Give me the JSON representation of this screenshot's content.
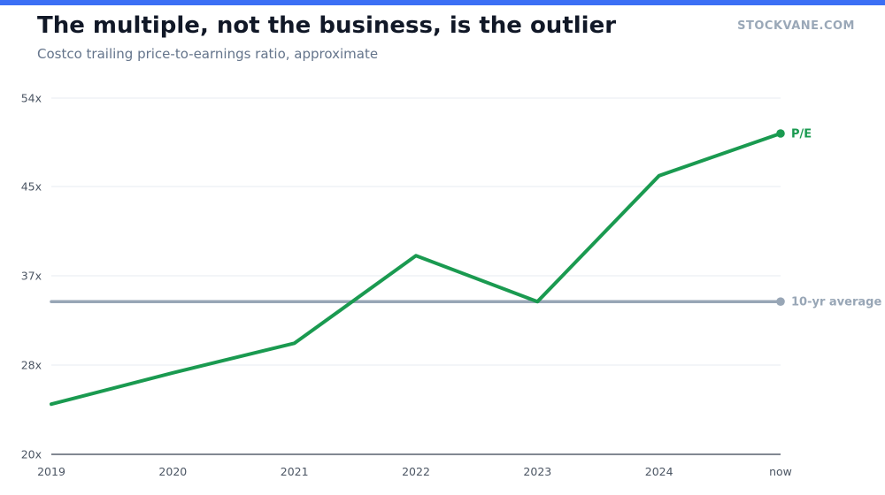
{
  "header": {
    "title": "The multiple, not the business, is the outlier",
    "subtitle": "Costco trailing price-to-earnings ratio, approximate",
    "brand": "STOCKVANE.COM"
  },
  "colors": {
    "accent_bar": "#3b6ff5",
    "pe_line": "#1a9a50",
    "average_line": "#98a6b6",
    "grid": "#eceff3",
    "axis": "#374151"
  },
  "chart_data": {
    "type": "line",
    "title": "The multiple, not the business, is the outlier",
    "subtitle": "Costco trailing price-to-earnings ratio, approximate",
    "xlabel": "",
    "ylabel": "",
    "categories": [
      "2019",
      "2020",
      "2021",
      "2022",
      "2023",
      "2024",
      "now"
    ],
    "ylim": [
      20,
      56
    ],
    "yticks": [
      20,
      28,
      37,
      45,
      54
    ],
    "ytick_labels": [
      "20x",
      "28x",
      "37x",
      "45x",
      "54x"
    ],
    "grid": true,
    "series": [
      {
        "name": "P/E",
        "values": [
          24.5,
          27.3,
          30.2,
          38.8,
          34.4,
          46.1,
          50.4
        ]
      },
      {
        "name": "10-yr average",
        "values": [
          34.4,
          34.4,
          34.4,
          34.4,
          34.4,
          34.4,
          34.4
        ]
      }
    ],
    "legend": "direct-labels-right"
  }
}
